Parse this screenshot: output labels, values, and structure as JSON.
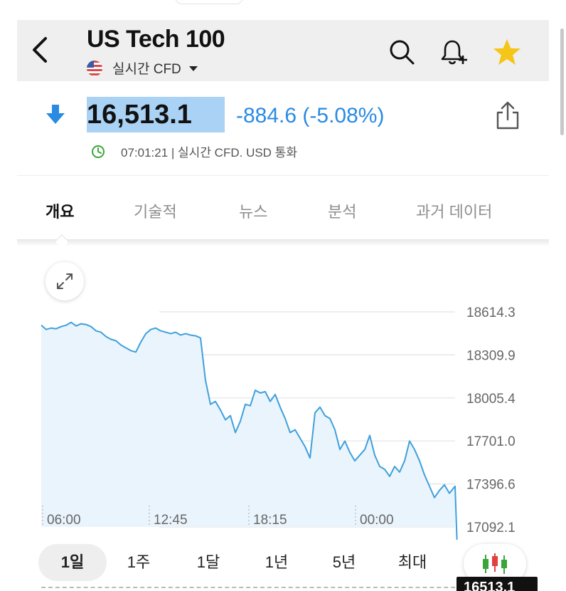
{
  "header": {
    "title": "US Tech 100",
    "subtitle": "실시간 CFD"
  },
  "quote": {
    "price": "16,513.1",
    "change": "-884.6 (-5.08%)",
    "meta": "07:01:21 | 실시간 CFD. USD 통화"
  },
  "tabs": [
    {
      "label": "개요"
    },
    {
      "label": "기술적"
    },
    {
      "label": "뉴스"
    },
    {
      "label": "분석"
    },
    {
      "label": "과거 데이터"
    }
  ],
  "periods": [
    {
      "label": "1일"
    },
    {
      "label": "1주"
    },
    {
      "label": "1달"
    },
    {
      "label": "1년"
    },
    {
      "label": "5년"
    },
    {
      "label": "최대"
    }
  ],
  "last_price_tag": "16513.1",
  "colors": {
    "accent": "#2a8be2",
    "line": "#3ea0dc",
    "price_highlight": "#a9d2f5",
    "star": "#f5c518",
    "clock": "#3aa63a"
  },
  "icons": [
    "back-arrow-icon",
    "us-flag-icon",
    "caret-down-icon",
    "search-icon",
    "add-alert-bell-icon",
    "favorite-star-icon",
    "down-arrow-icon",
    "share-icon",
    "clock-icon",
    "expand-icon",
    "candlestick-icon"
  ],
  "chart_data": {
    "type": "line",
    "title": "",
    "xlabel": "",
    "ylabel": "",
    "x_ticks": [
      "06:00",
      "12:45",
      "18:15",
      "00:00"
    ],
    "y_ticks": [
      "18614.3",
      "18309.9",
      "18005.4",
      "17701.0",
      "17396.6",
      "17092.1"
    ],
    "ylim": [
      16990,
      18700
    ],
    "grid": true,
    "series": [
      {
        "values": [
          18520,
          18490,
          18500,
          18495,
          18510,
          18520,
          18540,
          18515,
          18530,
          18525,
          18510,
          18480,
          18470,
          18440,
          18420,
          18410,
          18380,
          18360,
          18340,
          18330,
          18400,
          18460,
          18490,
          18500,
          18480,
          18470,
          18460,
          18470,
          18450,
          18460,
          18450,
          18445,
          18430,
          18130,
          17960,
          17980,
          17920,
          17850,
          17880,
          17760,
          17840,
          17960,
          17950,
          18060,
          18040,
          18050,
          17980,
          18030,
          17940,
          17860,
          17760,
          17780,
          17720,
          17660,
          17580,
          17900,
          17940,
          17880,
          17860,
          17780,
          17640,
          17700,
          17620,
          17560,
          17600,
          17640,
          17740,
          17600,
          17520,
          17500,
          17450,
          17520,
          17480,
          17560,
          17700,
          17640,
          17560,
          17460,
          17380,
          17300,
          17350,
          17390,
          17330,
          17380,
          16513
        ]
      }
    ]
  }
}
